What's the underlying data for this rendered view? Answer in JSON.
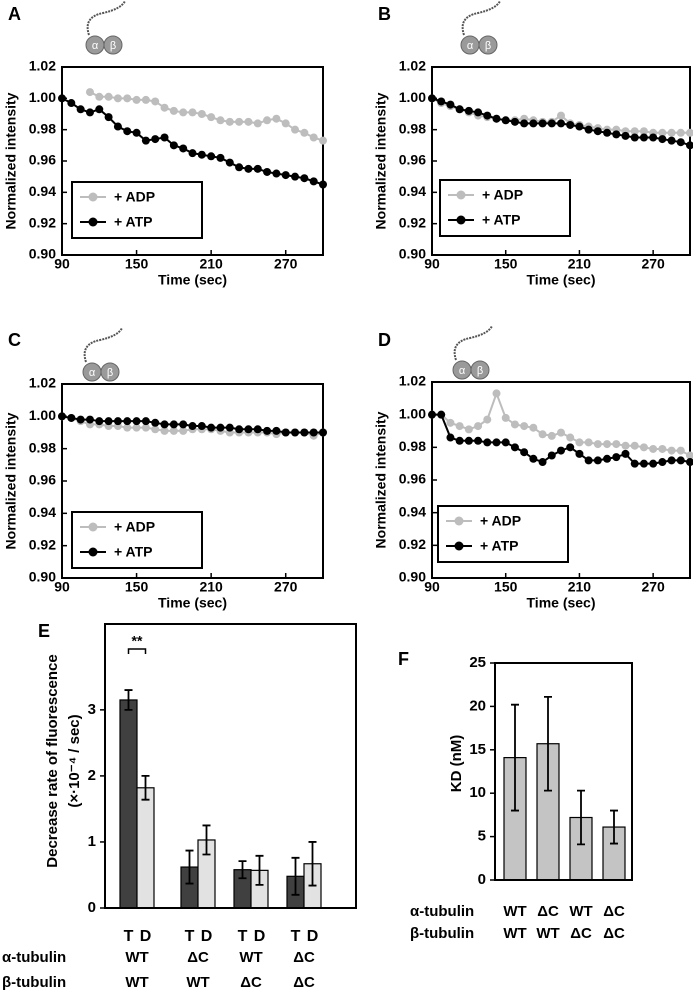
{
  "chart_data": [
    {
      "type": "line",
      "title": "A",
      "icon_labels": [
        "α",
        "β"
      ],
      "xlabel": "Time (sec)",
      "ylabel": "Normalized intensity",
      "x": [
        90,
        97.5,
        105,
        112.5,
        120,
        127.5,
        135,
        142.5,
        150,
        157.5,
        165,
        172.5,
        180,
        187.5,
        195,
        202.5,
        210,
        217.5,
        225,
        232.5,
        240,
        247.5,
        255,
        262.5,
        270,
        277.5,
        285,
        292.5,
        300
      ],
      "xlim": [
        90,
        300
      ],
      "xticks": [
        90,
        150,
        210,
        270
      ],
      "ylim": [
        0.9,
        1.02
      ],
      "yticks": [
        {
          "value": 0.9,
          "label": "0.90"
        },
        0.92,
        0.94,
        0.96,
        0.98,
        {
          "value": 1,
          "label": "1.00"
        },
        1.02
      ],
      "series": [
        {
          "name": "+ ADP",
          "color": "#bdbdbd",
          "values": [
            null,
            null,
            null,
            1.004,
            1.001,
            1.001,
            1.0,
            1.0,
            0.999,
            0.999,
            0.998,
            0.994,
            0.992,
            0.991,
            0.991,
            0.99,
            0.988,
            0.986,
            0.985,
            0.985,
            0.985,
            0.984,
            0.986,
            0.987,
            0.984,
            0.98,
            0.978,
            0.975,
            0.973
          ]
        },
        {
          "name": "+ ATP",
          "color": "#000000",
          "values": [
            1.0,
            0.997,
            0.993,
            0.991,
            0.993,
            0.988,
            0.982,
            0.979,
            0.978,
            0.973,
            0.974,
            0.975,
            0.97,
            0.968,
            0.965,
            0.964,
            0.963,
            0.962,
            0.959,
            0.956,
            0.955,
            0.955,
            0.953,
            0.952,
            0.951,
            0.95,
            0.949,
            0.947,
            0.945
          ]
        }
      ]
    },
    {
      "type": "line",
      "title": "B",
      "icon_labels": [
        "α",
        "β"
      ],
      "xlabel": "Time (sec)",
      "ylabel": "Normalized intensity",
      "x": [
        90,
        97.5,
        105,
        112.5,
        120,
        127.5,
        135,
        142.5,
        150,
        157.5,
        165,
        172.5,
        180,
        187.5,
        195,
        202.5,
        210,
        217.5,
        225,
        232.5,
        240,
        247.5,
        255,
        262.5,
        270,
        277.5,
        285,
        292.5,
        300
      ],
      "xlim": [
        90,
        300
      ],
      "xticks": [
        90,
        150,
        210,
        270
      ],
      "ylim": [
        0.9,
        1.02
      ],
      "yticks": [
        {
          "value": 0.9,
          "label": "0.90"
        },
        0.92,
        0.94,
        0.96,
        0.98,
        {
          "value": 1,
          "label": "1.00"
        },
        1.02
      ],
      "series": [
        {
          "name": "+ ADP",
          "color": "#bdbdbd",
          "values": [
            1.0,
            0.997,
            0.995,
            0.993,
            0.991,
            0.989,
            0.988,
            0.987,
            0.986,
            0.986,
            0.987,
            0.986,
            0.985,
            0.985,
            0.989,
            0.984,
            0.983,
            0.982,
            0.981,
            0.98,
            0.98,
            0.979,
            0.979,
            0.979,
            0.978,
            0.978,
            0.978,
            0.978,
            0.978
          ]
        },
        {
          "name": "+ ATP",
          "color": "#000000",
          "values": [
            1.0,
            0.998,
            0.996,
            0.993,
            0.992,
            0.991,
            0.989,
            0.987,
            0.986,
            0.985,
            0.984,
            0.984,
            0.984,
            0.984,
            0.984,
            0.983,
            0.982,
            0.98,
            0.979,
            0.978,
            0.977,
            0.976,
            0.975,
            0.975,
            0.975,
            0.974,
            0.973,
            0.972,
            0.97
          ]
        }
      ]
    },
    {
      "type": "line",
      "title": "C",
      "icon_labels": [
        "α",
        "β"
      ],
      "xlabel": "Time (sec)",
      "ylabel": "Normalized intensity",
      "x": [
        90,
        97.5,
        105,
        112.5,
        120,
        127.5,
        135,
        142.5,
        150,
        157.5,
        165,
        172.5,
        180,
        187.5,
        195,
        202.5,
        210,
        217.5,
        225,
        232.5,
        240,
        247.5,
        255,
        262.5,
        270,
        277.5,
        285,
        292.5,
        300
      ],
      "xlim": [
        90,
        300
      ],
      "xticks": [
        90,
        150,
        210,
        270
      ],
      "ylim": [
        0.9,
        1.02
      ],
      "yticks": [
        {
          "value": 0.9,
          "label": "0.90"
        },
        0.92,
        0.94,
        0.96,
        0.98,
        {
          "value": 1,
          "label": "1.00"
        },
        1.02
      ],
      "series": [
        {
          "name": "+ ADP",
          "color": "#bdbdbd",
          "values": [
            1.0,
            0.999,
            0.997,
            0.995,
            0.995,
            0.994,
            0.994,
            0.993,
            0.993,
            0.993,
            0.992,
            0.991,
            0.991,
            0.991,
            0.992,
            0.992,
            0.992,
            0.991,
            0.99,
            0.99,
            0.99,
            0.99,
            0.99,
            0.989,
            0.99,
            0.99,
            0.99,
            0.988,
            0.99
          ]
        },
        {
          "name": "+ ATP",
          "color": "#000000",
          "values": [
            1.0,
            0.999,
            0.998,
            0.998,
            0.997,
            0.997,
            0.997,
            0.997,
            0.997,
            0.997,
            0.996,
            0.995,
            0.995,
            0.995,
            0.994,
            0.994,
            0.993,
            0.993,
            0.993,
            0.992,
            0.992,
            0.992,
            0.991,
            0.991,
            0.99,
            0.99,
            0.99,
            0.99,
            0.99
          ]
        }
      ]
    },
    {
      "type": "line",
      "title": "D",
      "icon_labels": [
        "α",
        "β"
      ],
      "xlabel": "Time (sec)",
      "ylabel": "Normalized intensity",
      "x": [
        90,
        97.5,
        105,
        112.5,
        120,
        127.5,
        135,
        142.5,
        150,
        157.5,
        165,
        172.5,
        180,
        187.5,
        195,
        202.5,
        210,
        217.5,
        225,
        232.5,
        240,
        247.5,
        255,
        262.5,
        270,
        277.5,
        285,
        292.5,
        300
      ],
      "xlim": [
        90,
        300
      ],
      "xticks": [
        90,
        150,
        210,
        270
      ],
      "ylim": [
        0.9,
        1.02
      ],
      "yticks": [
        {
          "value": 0.9,
          "label": "0.90"
        },
        0.92,
        0.94,
        0.96,
        0.98,
        {
          "value": 1,
          "label": "1.00"
        },
        1.02
      ],
      "series": [
        {
          "name": "+ ADP",
          "color": "#bdbdbd",
          "values": [
            1.0,
            1.0,
            0.995,
            0.993,
            0.991,
            0.993,
            0.997,
            1.013,
            0.998,
            0.994,
            0.993,
            0.992,
            0.988,
            0.987,
            0.989,
            0.986,
            0.983,
            0.983,
            0.982,
            0.982,
            0.982,
            0.981,
            0.981,
            0.98,
            0.979,
            0.979,
            0.978,
            0.978,
            0.975
          ]
        },
        {
          "name": "+ ATP",
          "color": "#000000",
          "values": [
            1.0,
            1.0,
            0.986,
            0.984,
            0.984,
            0.984,
            0.983,
            0.983,
            0.983,
            0.98,
            0.977,
            0.973,
            0.971,
            0.975,
            0.978,
            0.98,
            0.976,
            0.972,
            0.972,
            0.973,
            0.974,
            0.976,
            0.97,
            0.97,
            0.97,
            0.971,
            0.972,
            0.972,
            0.971
          ]
        }
      ]
    },
    {
      "type": "grouped_bar",
      "title": "E",
      "ylabel": [
        "Decrease rate of fluorescence",
        "(×·10⁻⁴ / sec)"
      ],
      "ylim": [
        0,
        4.3
      ],
      "yticks": [
        0,
        1,
        2,
        3
      ],
      "annotation": "**",
      "category_rows": [
        {
          "label": "α-tubulin",
          "values": [
            "WT",
            "ΔC",
            "WT",
            "ΔC"
          ]
        },
        {
          "label": "β-tubulin",
          "values": [
            "WT",
            "WT",
            "ΔC",
            "ΔC"
          ]
        }
      ],
      "series": [
        {
          "name": "T",
          "color": "#404040",
          "values": [
            3.15,
            0.62,
            0.58,
            0.48
          ],
          "errors": [
            0.15,
            0.25,
            0.13,
            0.28
          ]
        },
        {
          "name": "D",
          "color": "#e2e2e2",
          "values": [
            1.82,
            1.03,
            0.57,
            0.67
          ],
          "errors": [
            0.18,
            0.22,
            0.22,
            0.33
          ]
        }
      ]
    },
    {
      "type": "bar",
      "title": "F",
      "ylabel": "KD (nM)",
      "ylim": [
        0,
        25
      ],
      "yticks": [
        0,
        5,
        10,
        15,
        20,
        25
      ],
      "category_rows": [
        {
          "label": "α-tubulin",
          "values": [
            "WT",
            "ΔC",
            "WT",
            "ΔC"
          ]
        },
        {
          "label": "β-tubulin",
          "values": [
            "WT",
            "WT",
            "ΔC",
            "ΔC"
          ]
        }
      ],
      "color": "#c4c4c4",
      "values": [
        14.1,
        15.7,
        7.2,
        6.1
      ],
      "errors": [
        6.1,
        5.4,
        3.1,
        1.9
      ]
    }
  ]
}
